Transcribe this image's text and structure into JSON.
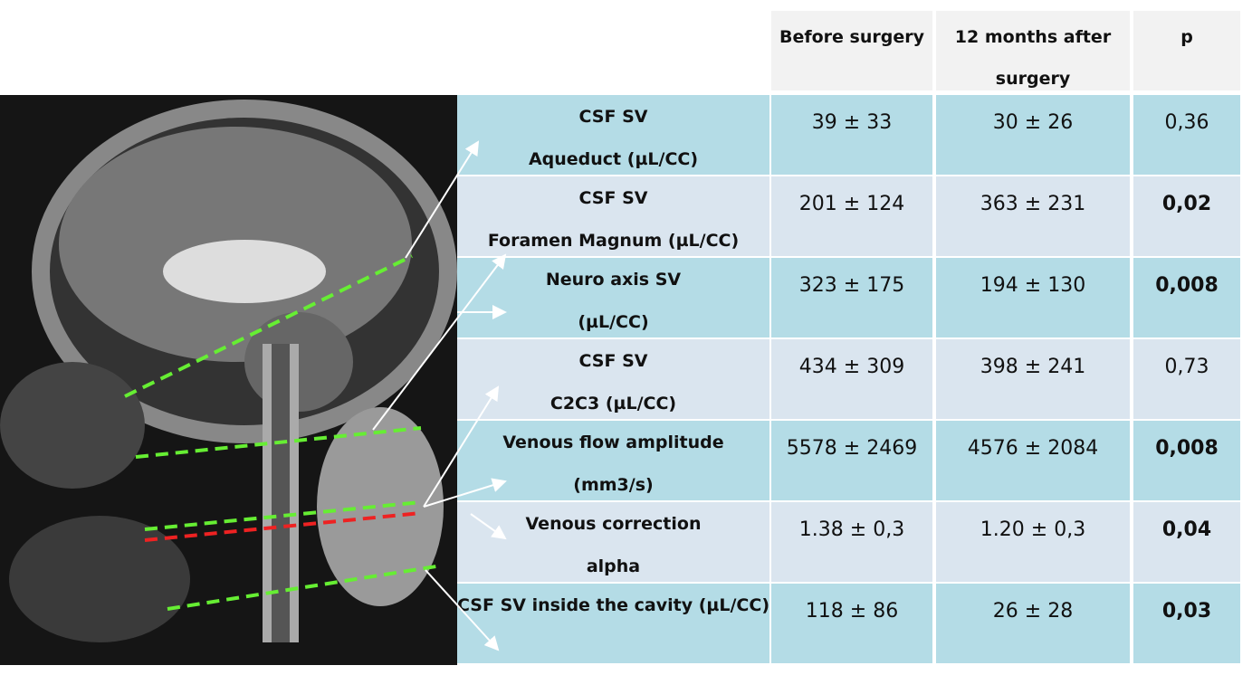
{
  "table": {
    "columns": [
      "Before surgery",
      "12 months after surgery",
      "p"
    ],
    "rows": [
      {
        "label": [
          "CSF SV",
          "Aqueduct (µL/CC)"
        ],
        "cells": [
          "39 ± 33",
          "30 ± 26",
          "0,36"
        ]
      },
      {
        "label": [
          "CSF SV",
          "Foramen Magnum (µL/CC)"
        ],
        "cells": [
          "201 ± 124",
          "363 ± 231",
          "0,02"
        ]
      },
      {
        "label": [
          "Neuro axis SV",
          "(µL/CC)"
        ],
        "cells": [
          "323 ± 175",
          "194 ± 130",
          "0,008"
        ]
      },
      {
        "label": [
          "CSF SV",
          "C2C3 (µL/CC)"
        ],
        "cells": [
          "434 ± 309",
          "398 ± 241",
          "0,73"
        ]
      },
      {
        "label": [
          "Venous flow amplitude",
          "(mm3/s)"
        ],
        "cells": [
          "5578 ± 2469",
          "4576 ± 2084",
          "0,008"
        ]
      },
      {
        "label": [
          "Venous correction",
          "alpha"
        ],
        "cells": [
          "1.38 ± 0,3",
          "1.20 ± 0,3",
          "0,04"
        ]
      },
      {
        "label": [
          "CSF SV inside the cavity (µL/CC)"
        ],
        "cells": [
          "118 ± 86",
          "26 ± 28",
          "0,03"
        ]
      }
    ]
  }
}
